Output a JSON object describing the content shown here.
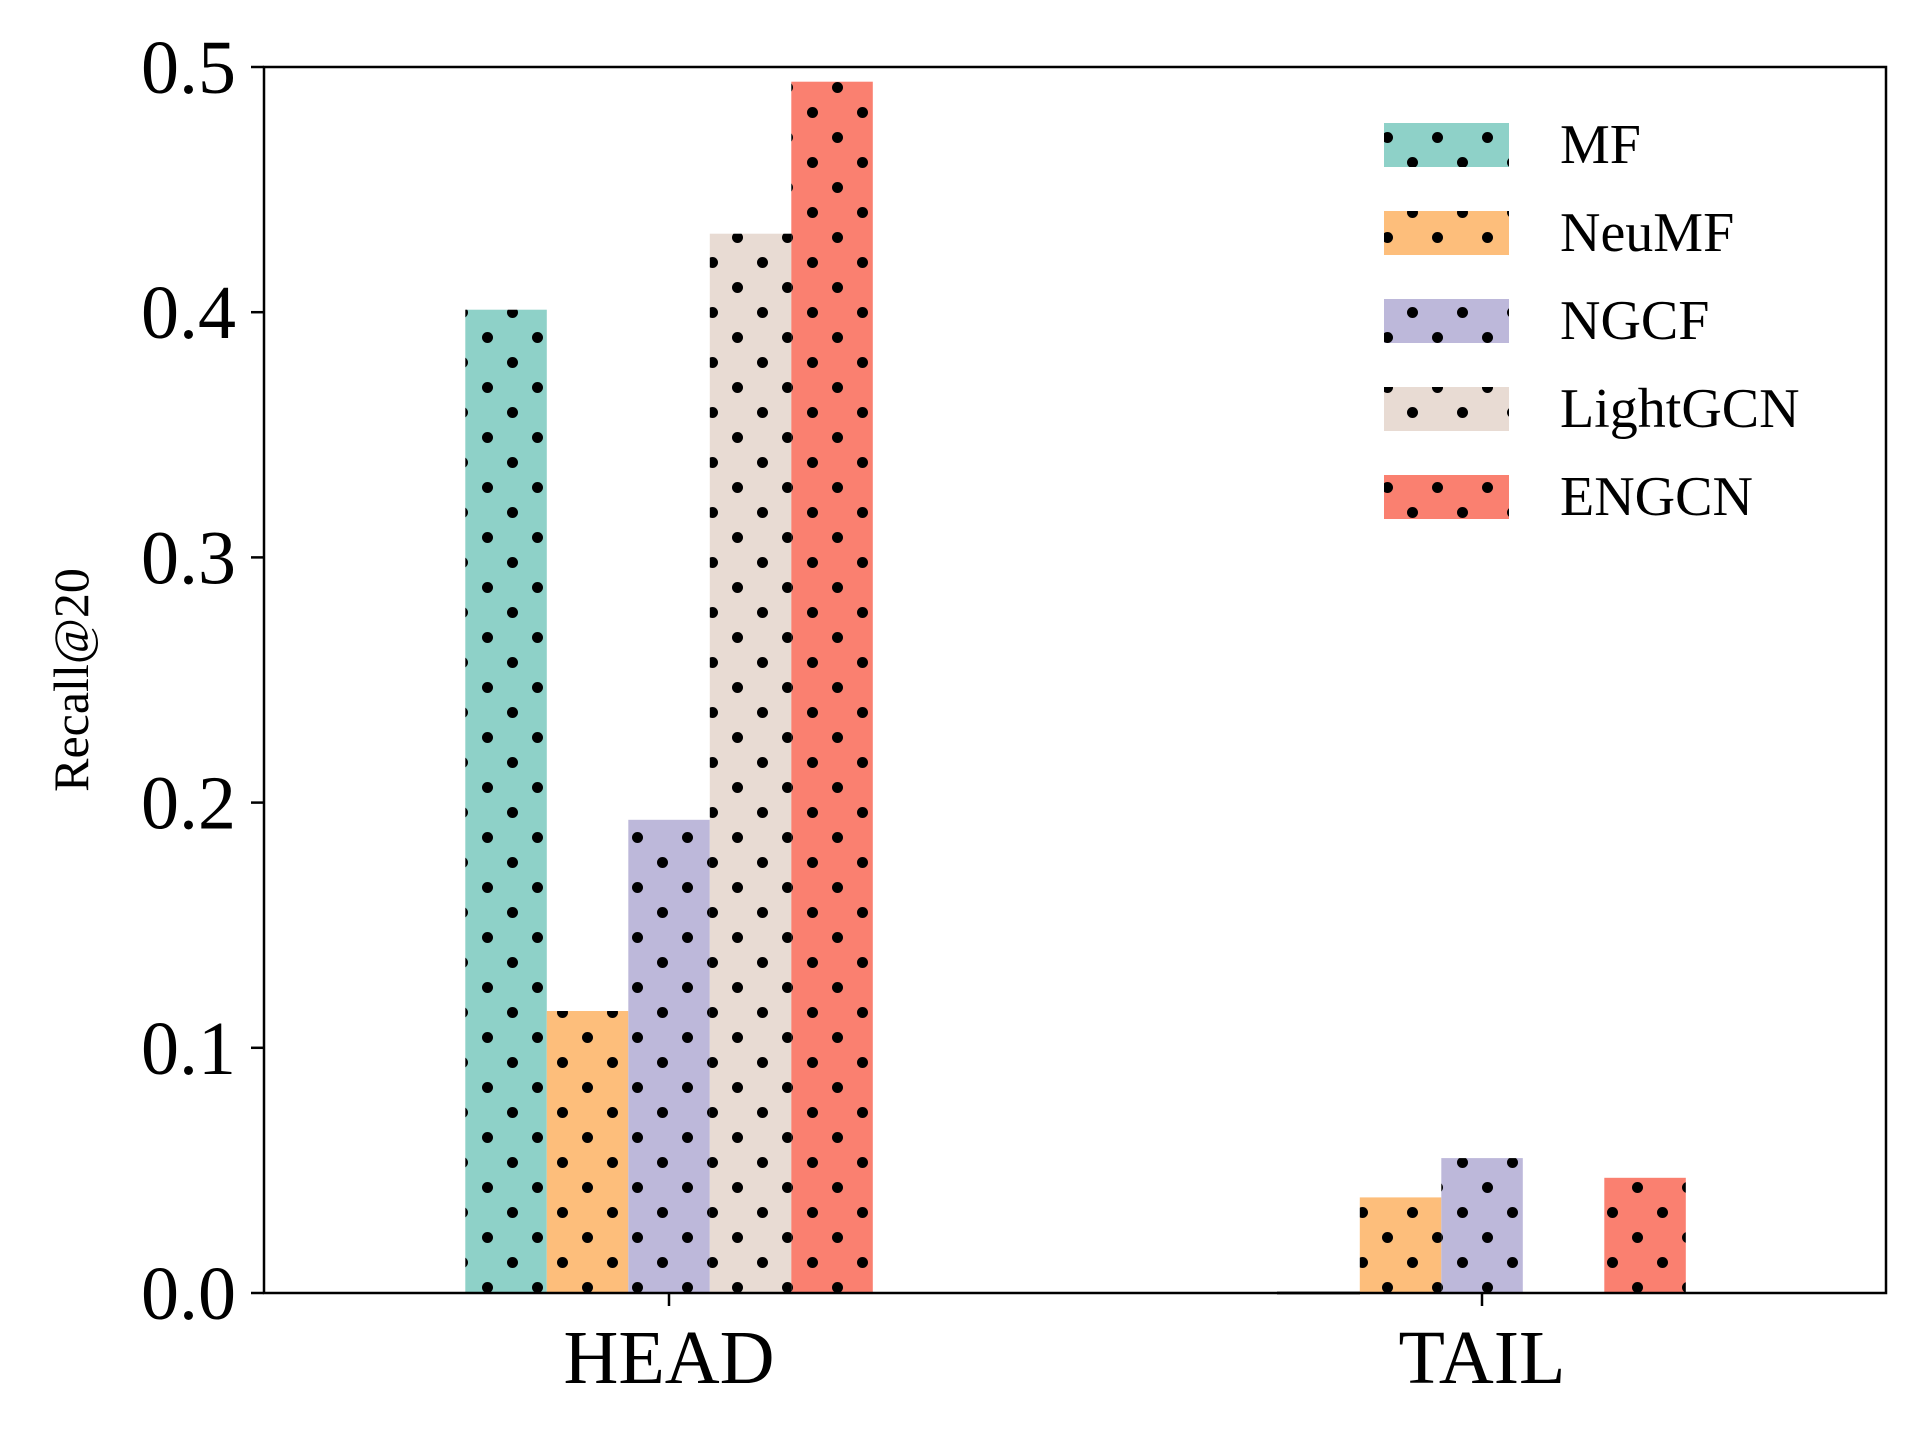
{
  "chart_data": {
    "type": "bar",
    "categories": [
      "HEAD",
      "TAIL"
    ],
    "series": [
      {
        "name": "MF",
        "values": [
          0.401,
          0.0
        ],
        "color": "#8ed1c8"
      },
      {
        "name": "NeuMF",
        "values": [
          0.115,
          0.039
        ],
        "color": "#fdbe7b"
      },
      {
        "name": "NGCF",
        "values": [
          0.193,
          0.055
        ],
        "color": "#bdb8da"
      },
      {
        "name": "LightGCN",
        "values": [
          0.432,
          0.0
        ],
        "color": "#e8dbd3"
      },
      {
        "name": "ENGCN",
        "values": [
          0.494,
          0.047
        ],
        "color": "#fa8070"
      }
    ],
    "ylabel": "Recall@20",
    "xlabel": "",
    "ylim": [
      0,
      0.5
    ],
    "yticks": [
      "0.0",
      "0.1",
      "0.2",
      "0.3",
      "0.4",
      "0.5"
    ],
    "legend_position": "top-right",
    "pattern": "dots",
    "grid": false
  }
}
